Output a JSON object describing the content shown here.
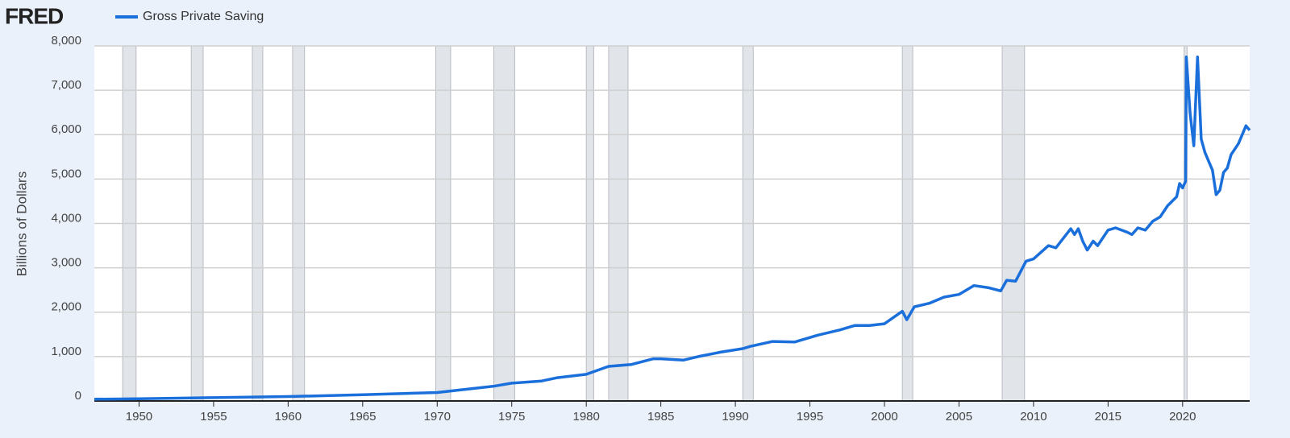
{
  "chart_data": {
    "type": "line",
    "logo": "FRED",
    "ylabel": "Billions of Dollars",
    "xlim": [
      1947,
      2024.5
    ],
    "ylim": [
      0,
      8000
    ],
    "xticks": [
      1950,
      1955,
      1960,
      1965,
      1970,
      1975,
      1980,
      1985,
      1990,
      1995,
      2000,
      2005,
      2010,
      2015,
      2020
    ],
    "yticks": [
      0,
      {
        "value": 1000,
        "label": "1,000"
      },
      {
        "value": 2000,
        "label": "2,000"
      },
      {
        "value": 3000,
        "label": "3,000"
      },
      {
        "value": 4000,
        "label": "4,000"
      },
      {
        "value": 5000,
        "label": "5,000"
      },
      {
        "value": 6000,
        "label": "6,000"
      },
      {
        "value": 7000,
        "label": "7,000"
      },
      {
        "value": 8000,
        "label": "8,000"
      }
    ],
    "grid": true,
    "recessions": [
      [
        1948.9,
        1949.8
      ],
      [
        1953.5,
        1954.3
      ],
      [
        1957.6,
        1958.3
      ],
      [
        1960.3,
        1961.1
      ],
      [
        1969.9,
        1970.9
      ],
      [
        1973.8,
        1975.2
      ],
      [
        1980.0,
        1980.5
      ],
      [
        1981.5,
        1982.8
      ],
      [
        1990.5,
        1991.2
      ],
      [
        2001.2,
        2001.9
      ],
      [
        2007.9,
        2009.4
      ],
      [
        2020.1,
        2020.3
      ]
    ],
    "recession_color": "#e1e5ea",
    "series": [
      {
        "name": "Gross Private Saving",
        "color": "#1a6fdb",
        "x": [
          1947,
          1950,
          1955,
          1960,
          1965,
          1970,
          1973.75,
          1975,
          1977,
          1978,
          1980,
          1981.5,
          1983,
          1984.5,
          1985,
          1986.5,
          1987.5,
          1989,
          1990.5,
          1991,
          1992.5,
          1994,
          1995.5,
          1997,
          1998,
          1999,
          2000,
          2001.2,
          2001.5,
          2002,
          2003,
          2004,
          2005,
          2006,
          2007,
          2007.8,
          2008.2,
          2008.8,
          2009.5,
          2010,
          2011,
          2011.5,
          2012.5,
          2012.75,
          2013,
          2013.3,
          2013.6,
          2014,
          2014.3,
          2015,
          2015.5,
          2016.3,
          2016.6,
          2017,
          2017.5,
          2018,
          2018.5,
          2019,
          2019.6,
          2019.8,
          2020,
          2020.2,
          2020.25,
          2020.5,
          2020.75,
          2021,
          2021.25,
          2021.5,
          2022,
          2022.25,
          2022.5,
          2022.75,
          2023,
          2023.25,
          2023.75,
          2024.25,
          2024.5
        ],
        "values": [
          40,
          50,
          75,
          100,
          140,
          190,
          330,
          400,
          450,
          520,
          600,
          780,
          820,
          950,
          950,
          920,
          1000,
          1100,
          1180,
          1230,
          1340,
          1330,
          1480,
          1600,
          1700,
          1700,
          1740,
          2020,
          1830,
          2120,
          2200,
          2340,
          2400,
          2600,
          2550,
          2480,
          2720,
          2700,
          3150,
          3200,
          3500,
          3450,
          3880,
          3750,
          3880,
          3600,
          3400,
          3600,
          3500,
          3850,
          3900,
          3800,
          3750,
          3900,
          3850,
          4050,
          4150,
          4400,
          4600,
          4900,
          4800,
          4950,
          7750,
          6500,
          5750,
          7750,
          5900,
          5600,
          5200,
          4650,
          4750,
          5150,
          5250,
          5550,
          5800,
          6200,
          6100
        ]
      }
    ]
  }
}
